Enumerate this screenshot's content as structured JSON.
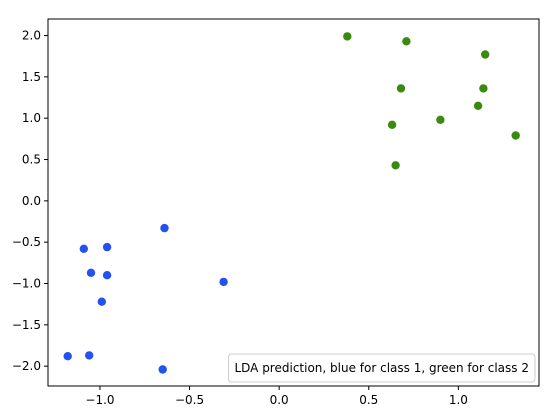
{
  "chart_data": {
    "type": "scatter",
    "title": "",
    "xlabel": "",
    "ylabel": "",
    "xlim": [
      -1.29,
      1.45
    ],
    "ylim": [
      -2.24,
      2.2
    ],
    "grid": false,
    "legend_position": "lower-right",
    "legend_text": "LDA prediction, blue for class 1, green for class 2",
    "x_ticks": [
      -1.0,
      -0.5,
      0.0,
      0.5,
      1.0
    ],
    "x_tick_labels": [
      "−1.0",
      "−0.5",
      "0.0",
      "0.5",
      "1.0"
    ],
    "y_ticks": [
      -2.0,
      -1.5,
      -1.0,
      -0.5,
      0.0,
      0.5,
      1.0,
      1.5,
      2.0
    ],
    "y_tick_labels": [
      "−2.0",
      "−1.5",
      "−1.0",
      "−0.5",
      "0.0",
      "0.5",
      "1.0",
      "1.5",
      "2.0"
    ],
    "series": [
      {
        "color": "#2352f0",
        "points": [
          [
            -1.18,
            -1.88
          ],
          [
            -1.06,
            -1.87
          ],
          [
            -0.65,
            -2.04
          ],
          [
            -0.99,
            -1.22
          ],
          [
            -1.05,
            -0.87
          ],
          [
            -0.96,
            -0.9
          ],
          [
            -1.09,
            -0.58
          ],
          [
            -0.96,
            -0.56
          ],
          [
            -0.64,
            -0.33
          ],
          [
            -0.31,
            -0.98
          ]
        ]
      },
      {
        "color": "#3a8a10",
        "points": [
          [
            0.38,
            1.99
          ],
          [
            0.71,
            1.93
          ],
          [
            1.15,
            1.77
          ],
          [
            0.68,
            1.36
          ],
          [
            1.14,
            1.36
          ],
          [
            1.11,
            1.15
          ],
          [
            0.9,
            0.98
          ],
          [
            0.63,
            0.92
          ],
          [
            1.32,
            0.79
          ],
          [
            0.65,
            0.43
          ]
        ]
      }
    ]
  }
}
